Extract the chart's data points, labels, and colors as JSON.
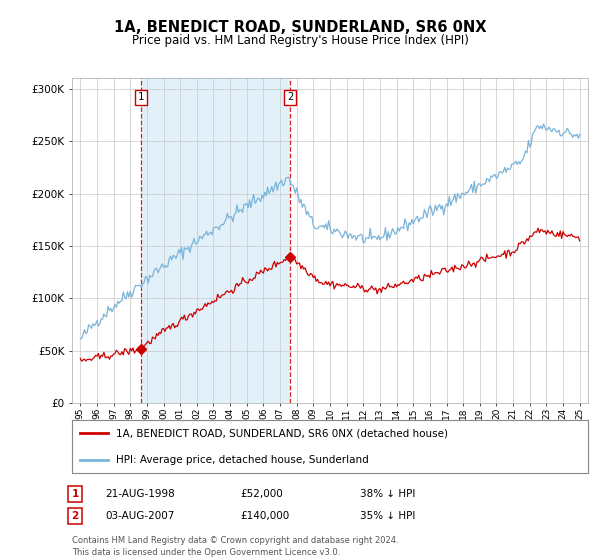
{
  "title": "1A, BENEDICT ROAD, SUNDERLAND, SR6 0NX",
  "subtitle": "Price paid vs. HM Land Registry's House Price Index (HPI)",
  "hpi_label": "HPI: Average price, detached house, Sunderland",
  "property_label": "1A, BENEDICT ROAD, SUNDERLAND, SR6 0NX (detached house)",
  "sale1_date": "21-AUG-1998",
  "sale1_price": 52000,
  "sale1_year": 1998.64,
  "sale1_pct": "38% ↓ HPI",
  "sale2_date": "03-AUG-2007",
  "sale2_price": 140000,
  "sale2_year": 2007.59,
  "sale2_pct": "35% ↓ HPI",
  "footer": "Contains HM Land Registry data © Crown copyright and database right 2024.\nThis data is licensed under the Open Government Licence v3.0.",
  "hpi_color": "#7ab4d8",
  "property_color": "#cc0000",
  "marker_color": "#cc0000",
  "shade_color": "#d6eaf8",
  "dashed_color": "#cc0000",
  "ylim_min": 0,
  "ylim_max": 310000,
  "xlim_min": 1994.5,
  "xlim_max": 2025.5,
  "background_color": "#ffffff",
  "plot_bg_color": "#ffffff",
  "grid_color": "#c8c8c8"
}
